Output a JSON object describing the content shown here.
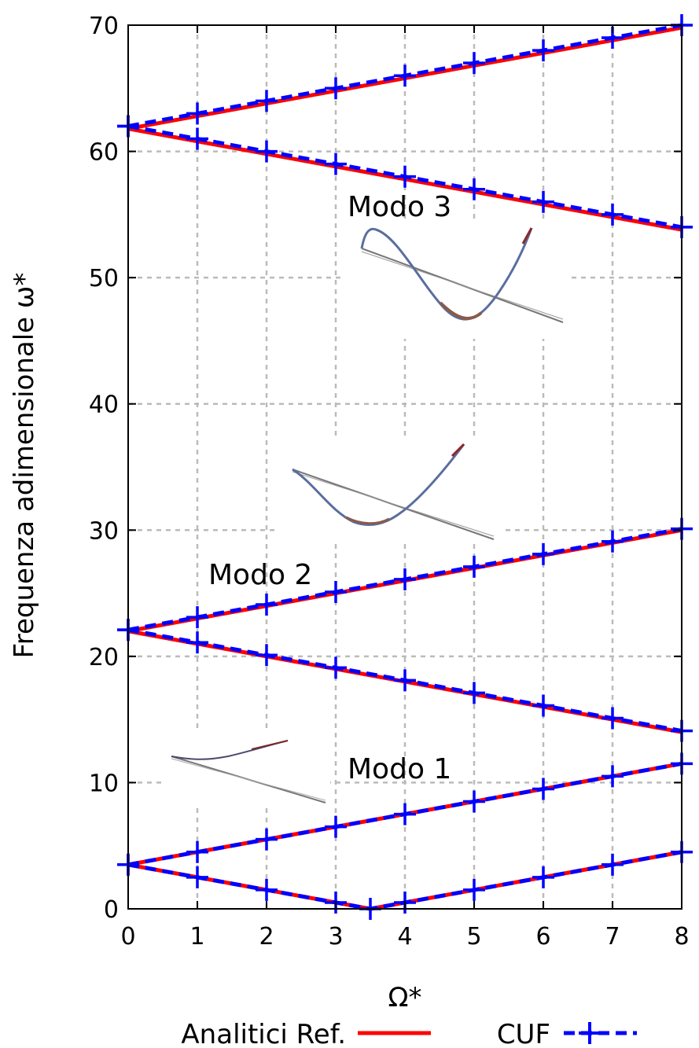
{
  "chart_data": {
    "type": "line",
    "xlabel": "Ω*",
    "ylabel": "Frequenza adimensionale ω*",
    "xlim": [
      0,
      8
    ],
    "ylim": [
      0,
      70
    ],
    "xticks": [
      0,
      1,
      2,
      3,
      4,
      5,
      6,
      7,
      8
    ],
    "yticks": [
      0,
      10,
      20,
      30,
      40,
      50,
      60,
      70
    ],
    "grid": true,
    "legend_position": "bottom",
    "legend": [
      {
        "label": "Analitici Ref.",
        "color": "#ff0000",
        "style": "solid"
      },
      {
        "label": "CUF",
        "color": "#0000ff",
        "style": "dashed-plus"
      }
    ],
    "annotations": [
      "Modo 1",
      "Modo 2",
      "Modo 3"
    ],
    "series": [
      {
        "group": "Analitici Ref.",
        "x": [
          0,
          8
        ],
        "values": [
          61.8,
          69.8
        ]
      },
      {
        "group": "Analitici Ref.",
        "x": [
          0,
          8
        ],
        "values": [
          61.8,
          53.8
        ]
      },
      {
        "group": "Analitici Ref.",
        "x": [
          0,
          8
        ],
        "values": [
          22.0,
          30.0
        ]
      },
      {
        "group": "Analitici Ref.",
        "x": [
          0,
          8
        ],
        "values": [
          22.0,
          14.0
        ]
      },
      {
        "group": "Analitici Ref.",
        "x": [
          0,
          8
        ],
        "values": [
          3.5,
          11.5
        ]
      },
      {
        "group": "Analitici Ref.",
        "x": [
          0,
          3.5,
          8
        ],
        "values": [
          3.5,
          0,
          4.5
        ]
      },
      {
        "group": "CUF",
        "x": [
          0,
          1,
          2,
          3,
          4,
          5,
          6,
          7,
          8
        ],
        "values": [
          62.0,
          63.0,
          64.0,
          65.0,
          66.0,
          67.0,
          68.0,
          69.0,
          70.0
        ]
      },
      {
        "group": "CUF",
        "x": [
          0,
          1,
          2,
          3,
          4,
          5,
          6,
          7,
          8
        ],
        "values": [
          62.0,
          61.0,
          60.0,
          59.0,
          58.0,
          57.0,
          56.0,
          55.0,
          54.0
        ]
      },
      {
        "group": "CUF",
        "x": [
          0,
          1,
          2,
          3,
          4,
          5,
          6,
          7,
          8
        ],
        "values": [
          22.1,
          23.1,
          24.1,
          25.1,
          26.1,
          27.1,
          28.1,
          29.1,
          30.1
        ]
      },
      {
        "group": "CUF",
        "x": [
          0,
          1,
          2,
          3,
          4,
          5,
          6,
          7,
          8
        ],
        "values": [
          22.1,
          21.1,
          20.1,
          19.1,
          18.1,
          17.1,
          16.1,
          15.1,
          14.1
        ]
      },
      {
        "group": "CUF",
        "x": [
          0,
          1,
          2,
          3,
          4,
          5,
          6,
          7,
          8
        ],
        "values": [
          3.5,
          4.5,
          5.5,
          6.5,
          7.5,
          8.5,
          9.5,
          10.5,
          11.5
        ]
      },
      {
        "group": "CUF",
        "x": [
          0,
          1,
          2,
          3,
          3.5,
          4,
          5,
          6,
          7,
          8
        ],
        "values": [
          3.5,
          2.5,
          1.5,
          0.5,
          0,
          0.5,
          1.5,
          2.5,
          3.5,
          4.5
        ]
      }
    ]
  }
}
